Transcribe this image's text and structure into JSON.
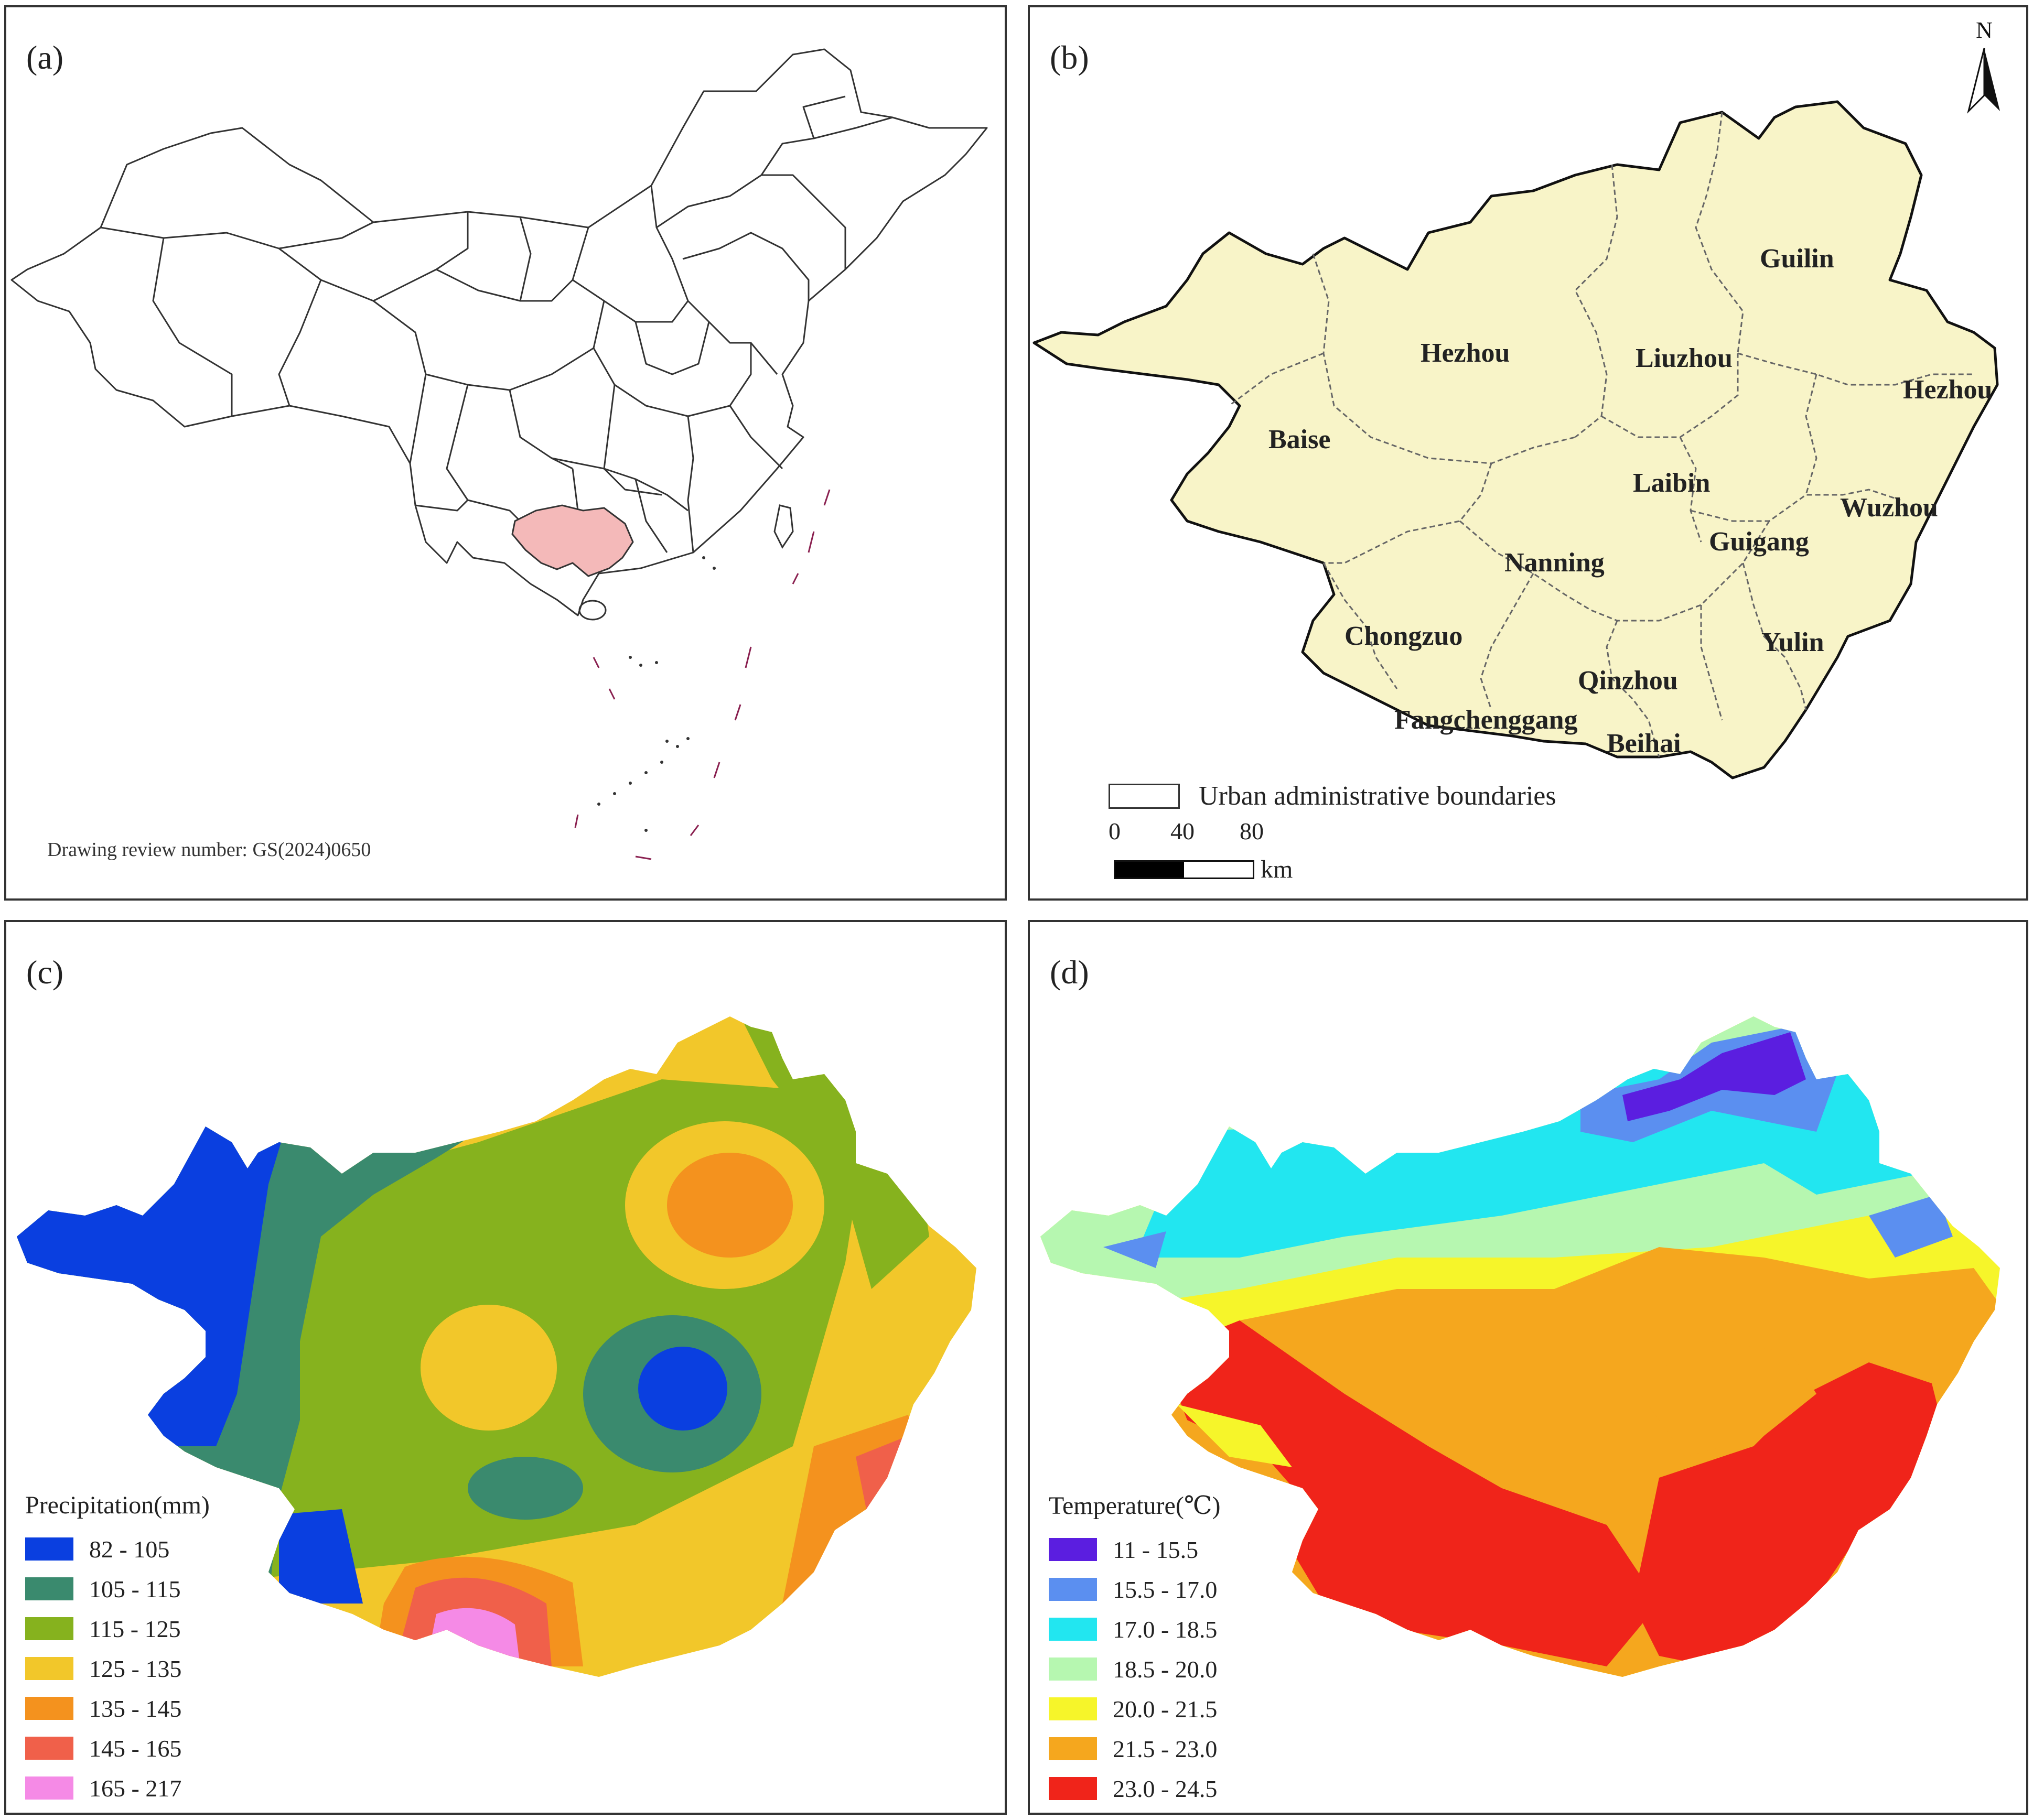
{
  "panel_a": {
    "label": "(a)",
    "review_note": "Drawing review number: GS(2024)0650",
    "highlight_color": "#f4b9b9"
  },
  "panel_b": {
    "label": "(b)",
    "north_label": "N",
    "fill_color": "#f8f4c8",
    "cities": [
      "Guilin",
      "Hezhou",
      "Liuzhou",
      "Hezhou",
      "Baise",
      "Laibin",
      "Wuzhou",
      "Guigang",
      "Nanning",
      "Chongzuo",
      "Yulin",
      "Qinzhou",
      "Fangchenggang",
      "Beihai"
    ],
    "legend_label": "Urban administrative boundaries",
    "scale": {
      "ticks": [
        "0",
        "40",
        "80"
      ],
      "unit": "km"
    }
  },
  "panel_c": {
    "label": "(c)",
    "legend_title": "Precipitation(mm)",
    "classes": [
      {
        "range": "82 - 105",
        "color": "#0a3fe0"
      },
      {
        "range": "105 - 115",
        "color": "#3a8a6e"
      },
      {
        "range": "115 - 125",
        "color": "#86b21e"
      },
      {
        "range": "125 - 135",
        "color": "#f2c72a"
      },
      {
        "range": "135 - 145",
        "color": "#f4921e"
      },
      {
        "range": "145 - 165",
        "color": "#f0604a"
      },
      {
        "range": "165 - 217",
        "color": "#f58ae6"
      }
    ]
  },
  "panel_d": {
    "label": "(d)",
    "legend_title": "Temperature(℃)",
    "classes": [
      {
        "range": "11 - 15.5",
        "color": "#5b1ee0"
      },
      {
        "range": "15.5 - 17.0",
        "color": "#5b8ff0"
      },
      {
        "range": "17.0 - 18.5",
        "color": "#22e6f0"
      },
      {
        "range": "18.5 - 20.0",
        "color": "#b6f7b0"
      },
      {
        "range": "20.0 - 21.5",
        "color": "#f6f52a"
      },
      {
        "range": "21.5 - 23.0",
        "color": "#f5a71e"
      },
      {
        "range": "23.0 - 24.5",
        "color": "#f0241a"
      }
    ]
  }
}
